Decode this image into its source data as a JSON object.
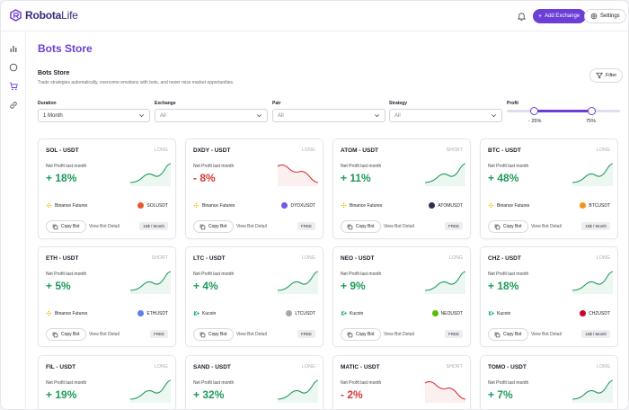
{
  "app": {
    "logo_bold": "Robota",
    "logo_light": "Life",
    "add_exchange": "Add Exchange",
    "settings": "Settings"
  },
  "page": {
    "title": "Bots Store",
    "section_title": "Bots Store",
    "section_subtitle": "Trade strategies automatically, overcome emotions with bots, and never miss market opportunities.",
    "filter_label": "Filter"
  },
  "filters": {
    "duration": {
      "label": "Duration",
      "value": "1 Month"
    },
    "exchange": {
      "label": "Exchange",
      "value": "All"
    },
    "pair": {
      "label": "Pair",
      "value": "All"
    },
    "strategy": {
      "label": "Strategy",
      "value": "All"
    },
    "profit": {
      "label": "Profit",
      "min_label": "- 25%",
      "max_label": "75%",
      "min_fraction": 0.24,
      "max_fraction": 0.75
    }
  },
  "card_labels": {
    "profit_label": "Net Profit last month",
    "copy_bot": "Copy Bot",
    "view_detail": "View Bot Detail"
  },
  "colors": {
    "accent": "#6b3fd6",
    "positive": "#1e9a5a",
    "negative": "#d6363a"
  },
  "bots": [
    {
      "title": "SOL - USDT",
      "direction": "LONG",
      "profit": "+ 18%",
      "trend": "up",
      "exchange": "Binance Futures",
      "exchange_icon": "binance-icon",
      "pair": "SOLUSDT",
      "coin_color": "#e8582a",
      "price": "15$ / Month"
    },
    {
      "title": "DXDY - USDT",
      "direction": "LONG",
      "profit": "- 8%",
      "trend": "down",
      "exchange": "Binance Futures",
      "exchange_icon": "binance-icon",
      "pair": "DYDXUSDT",
      "coin_color": "#6b5ce7",
      "price": "FREE"
    },
    {
      "title": "ATOM - USDT",
      "direction": "SHORT",
      "profit": "+ 11%",
      "trend": "up",
      "exchange": "Binance Futures",
      "exchange_icon": "binance-icon",
      "pair": "ATOMUSDT",
      "coin_color": "#2e3148",
      "price": "FREE"
    },
    {
      "title": "BTC - USDT",
      "direction": "LONG",
      "profit": "+ 48%",
      "trend": "up",
      "exchange": "Binance Futures",
      "exchange_icon": "binance-icon",
      "pair": "BTCUSDT",
      "coin_color": "#f7931a",
      "price": "15$ / Month"
    },
    {
      "title": "ETH - USDT",
      "direction": "SHORT",
      "profit": "+ 5%",
      "trend": "up",
      "exchange": "Binance Futures",
      "exchange_icon": "binance-icon",
      "pair": "ETHUSDT",
      "coin_color": "#627eea",
      "price": "FREE"
    },
    {
      "title": "LTC - USDT",
      "direction": "LONG",
      "profit": "+ 4%",
      "trend": "up",
      "exchange": "Kucoin",
      "exchange_icon": "kucoin-icon",
      "pair": "LTCUSDT",
      "coin_color": "#a6a9aa",
      "price": "FREE"
    },
    {
      "title": "NEO - USDT",
      "direction": "LONG",
      "profit": "+ 9%",
      "trend": "up",
      "exchange": "Kucoin",
      "exchange_icon": "kucoin-icon",
      "pair": "NEOUSDT",
      "coin_color": "#58bf00",
      "price": "FREE"
    },
    {
      "title": "CHZ - USDT",
      "direction": "LONG",
      "profit": "+ 18%",
      "trend": "up",
      "exchange": "Kucoin",
      "exchange_icon": "kucoin-icon",
      "pair": "CHZUSDT",
      "coin_color": "#cd0124",
      "price": "15$ / Month"
    },
    {
      "title": "FIL - USDT",
      "direction": "LONG",
      "profit": "+ 19%",
      "trend": "up"
    },
    {
      "title": "SAND - USDT",
      "direction": "LONG",
      "profit": "+ 32%",
      "trend": "up"
    },
    {
      "title": "MATIC - USDT",
      "direction": "SHORT",
      "profit": "- 2%",
      "trend": "down"
    },
    {
      "title": "TOMO - USDT",
      "direction": "LONG",
      "profit": "+ 7%",
      "trend": "up"
    }
  ]
}
